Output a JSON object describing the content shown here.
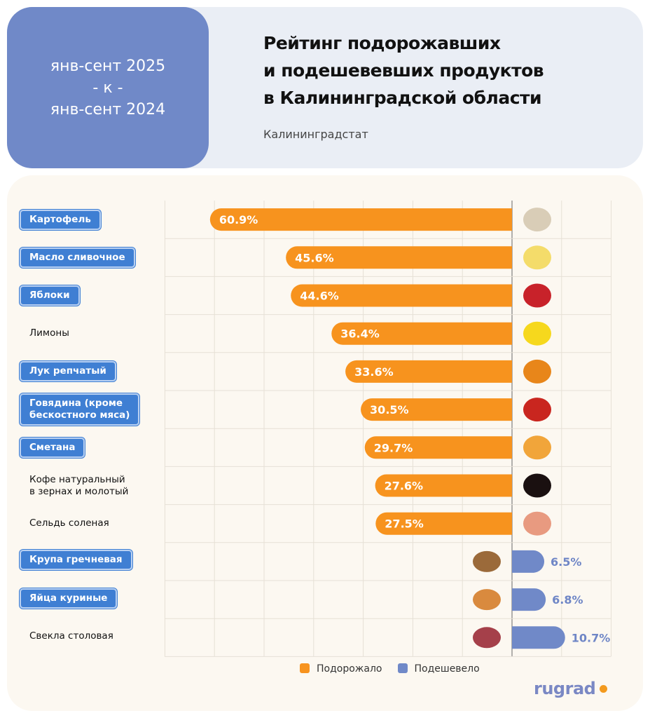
{
  "header": {
    "period_line1": "янв-сент 2025",
    "period_line2": "-  к  -",
    "period_line3": "янв-сент 2024",
    "title_line1": "Рейтинг подорожавших",
    "title_line2": "и подешевевших продуктов",
    "title_line3": "в Калининградской области",
    "source": "Калининградстат"
  },
  "colors": {
    "up": "#f7931e",
    "down": "#7089c8",
    "badge": "#3f7fd3"
  },
  "chart_data": {
    "type": "bar",
    "orientation": "horizontal-diverging",
    "categories": [
      "Картофель",
      "Масло сливочное",
      "Яблоки",
      "Лимоны",
      "Лук репчатый",
      "Говядина (кроме бескостного мяса)",
      "Сметана",
      "Кофе натуральный в зернах и молотый",
      "Сельдь соленая",
      "Крупа гречневая",
      "Яйца куриные",
      "Свекла столовая"
    ],
    "label_lines": [
      [
        "Картофель"
      ],
      [
        "Масло сливочное"
      ],
      [
        "Яблоки"
      ],
      [
        "Лимоны"
      ],
      [
        "Лук репчатый"
      ],
      [
        "Говядина (кроме",
        "бескостного мяса)"
      ],
      [
        "Сметана"
      ],
      [
        "Кофе натуральный",
        "в зернах и молотый"
      ],
      [
        "Сельдь соленая"
      ],
      [
        "Крупа гречневая"
      ],
      [
        "Яйца куриные"
      ],
      [
        "Свекла столовая"
      ]
    ],
    "highlighted": [
      true,
      true,
      true,
      false,
      true,
      true,
      true,
      false,
      false,
      true,
      true,
      false
    ],
    "values": [
      60.9,
      45.6,
      44.6,
      36.4,
      33.6,
      30.5,
      29.7,
      27.6,
      27.5,
      6.5,
      6.8,
      10.7
    ],
    "direction": [
      "up",
      "up",
      "up",
      "up",
      "up",
      "up",
      "up",
      "up",
      "up",
      "down",
      "down",
      "down"
    ],
    "data_labels": [
      "60.9%",
      "45.6%",
      "44.6%",
      "36.4%",
      "33.6%",
      "30.5%",
      "29.7%",
      "27.6%",
      "27.5%",
      "6.5%",
      "6.8%",
      "10.7%"
    ],
    "icons": [
      "potato-icon",
      "butter-icon",
      "apple-icon",
      "lemon-icon",
      "onion-icon",
      "canned-meat-icon",
      "sour-cream-icon",
      "coffee-icon",
      "herring-icon",
      "buckwheat-icon",
      "eggs-icon",
      "beet-icon"
    ],
    "xlim_up": [
      0,
      70
    ],
    "xlim_down": [
      0,
      20
    ],
    "grid": true,
    "legend_position": "bottom",
    "legend": [
      "Подорожало",
      "Подешевело"
    ]
  },
  "logo": "rugrad"
}
